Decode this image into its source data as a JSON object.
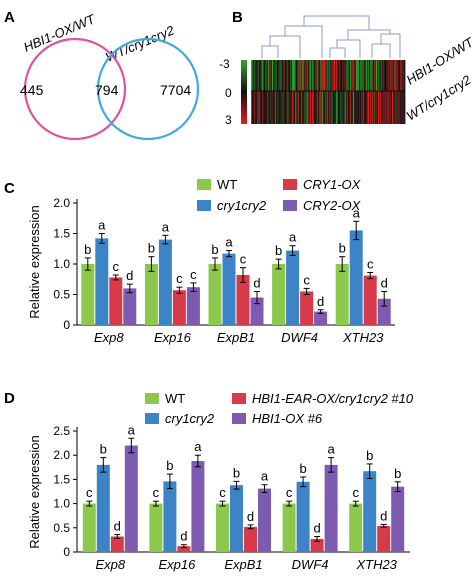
{
  "panels": {
    "A": "A",
    "B": "B",
    "C": "C",
    "D": "D"
  },
  "venn": {
    "left_label": "HBI1-OX/WT",
    "right_label": "WT/cry1cry2",
    "left_only": "445",
    "overlap": "794",
    "right_only": "7704",
    "left_color": "#e0519a",
    "right_color": "#3fa9dc"
  },
  "heatmap": {
    "scale_labels": [
      "-3",
      "0",
      "3"
    ],
    "row_labels": [
      "HBI1-OX/WT",
      "WT/cry1cry2"
    ],
    "low_color": "#2fa52f",
    "high_color": "#e02020"
  },
  "colors": {
    "wt": "#8cc84b",
    "cry": "#3c84c6",
    "ox_red": "#d73a48",
    "ox_purple": "#7c5bb0"
  },
  "chart_data": [
    {
      "type": "bar",
      "panel": "C",
      "ylabel": "Relative expression",
      "ylim": [
        0,
        2.0
      ],
      "yticks": [
        "0",
        "0.5",
        "1.0",
        "1.5",
        "2.0"
      ],
      "categories": [
        "Exp8",
        "Exp16",
        "ExpB1",
        "DWF4",
        "XTH23"
      ],
      "series": [
        {
          "name": "WT",
          "color": "#8cc84b",
          "values": [
            1.0,
            1.0,
            1.0,
            1.0,
            1.0
          ],
          "errors": [
            0.1,
            0.12,
            0.1,
            0.08,
            0.12
          ],
          "letters": [
            "b",
            "b",
            "b",
            "b",
            "b"
          ]
        },
        {
          "name": "cry1cry2",
          "color": "#3c84c6",
          "values": [
            1.42,
            1.4,
            1.17,
            1.22,
            1.55
          ],
          "errors": [
            0.08,
            0.07,
            0.05,
            0.08,
            0.15
          ],
          "letters": [
            "a",
            "a",
            "a",
            "a",
            "a"
          ]
        },
        {
          "name": "CRY1-OX",
          "color": "#d73a48",
          "values": [
            0.78,
            0.57,
            0.82,
            0.55,
            0.81
          ],
          "errors": [
            0.04,
            0.05,
            0.12,
            0.05,
            0.05
          ],
          "letters": [
            "c",
            "c",
            "c",
            "c",
            "c"
          ]
        },
        {
          "name": "CRY2-OX",
          "color": "#7c5bb0",
          "values": [
            0.6,
            0.62,
            0.45,
            0.22,
            0.43
          ],
          "errors": [
            0.07,
            0.07,
            0.1,
            0.03,
            0.12
          ],
          "letters": [
            "d",
            "c",
            "d",
            "d",
            "d"
          ]
        }
      ],
      "legend": {
        "placement": "top-right",
        "columns": 2
      }
    },
    {
      "type": "bar",
      "panel": "D",
      "ylabel": "Relative expression",
      "ylim": [
        0,
        2.5
      ],
      "yticks": [
        "0",
        "0.5",
        "1.0",
        "1.5",
        "2.0",
        "2.5"
      ],
      "categories": [
        "Exp8",
        "Exp16",
        "ExpB1",
        "DWF4",
        "XTH23"
      ],
      "series": [
        {
          "name": "WT",
          "color": "#8cc84b",
          "values": [
            1.0,
            1.0,
            1.0,
            1.0,
            1.0
          ],
          "errors": [
            0.05,
            0.05,
            0.05,
            0.05,
            0.05
          ],
          "letters": [
            "c",
            "c",
            "c",
            "c",
            "c"
          ]
        },
        {
          "name": "cry1cry2",
          "color": "#3c84c6",
          "values": [
            1.8,
            1.46,
            1.38,
            1.45,
            1.67
          ],
          "errors": [
            0.15,
            0.15,
            0.08,
            0.1,
            0.15
          ],
          "letters": [
            "b",
            "b",
            "b",
            "b",
            "b"
          ]
        },
        {
          "name": "HBI1-EAR-OX/cry1cry2 #10",
          "color": "#d73a48",
          "values": [
            0.32,
            0.12,
            0.52,
            0.27,
            0.54
          ],
          "errors": [
            0.04,
            0.03,
            0.04,
            0.05,
            0.03
          ],
          "letters": [
            "d",
            "d",
            "d",
            "d",
            "d"
          ]
        },
        {
          "name": "HBI1-OX #6",
          "color": "#7c5bb0",
          "values": [
            2.2,
            1.88,
            1.31,
            1.8,
            1.35
          ],
          "errors": [
            0.15,
            0.12,
            0.08,
            0.15,
            0.1
          ],
          "letters": [
            "a",
            "a",
            "a",
            "a",
            "b"
          ]
        }
      ],
      "legend": {
        "placement": "top",
        "columns": 2
      }
    }
  ]
}
